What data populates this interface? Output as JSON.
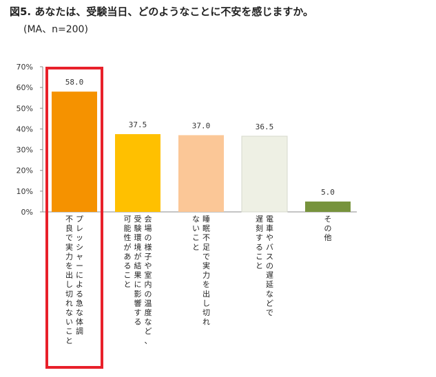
{
  "title": "図5. あなたは、受験当日、どのようなことに不安を感じますか。",
  "subtitle": "(MA、n=200)",
  "chart_data": {
    "type": "bar",
    "title": "図5. あなたは、受験当日、どのようなことに不安を感じますか。",
    "subtitle": "(MA、n=200)",
    "categories": [
      "プレッシャーによる急な体調不良で実力を出し切れないこと",
      "会場の様子や室内の温度など、受験環境が結果に影響する可能性があること",
      "睡眠不足で実力を出し切れないこと",
      "電車やバスの遅延などで遅刻すること",
      "その他"
    ],
    "values": [
      58.0,
      37.5,
      37.0,
      36.5,
      5.0
    ],
    "value_labels": [
      "58.0",
      "37.5",
      "37.0",
      "36.5",
      "5.0"
    ],
    "colors": [
      "#F59200",
      "#FFC000",
      "#FBC797",
      "#EEF0E4",
      "#77933C"
    ],
    "y_ticks": [
      "0%",
      "10%",
      "20%",
      "30%",
      "40%",
      "50%",
      "60%",
      "70%"
    ],
    "ylim": [
      0,
      70
    ],
    "grid": false,
    "highlight_index": 0,
    "highlight_color": "#E8202A",
    "label_lines": [
      [
        "プレッシャーによる急な体調",
        "不良で実力を出し切れないこと"
      ],
      [
        "会場の様子や室内の温度など、",
        "受験環境が結果に影響する",
        "可能性があること"
      ],
      [
        "睡眠不足で実力を出し切れ",
        "ないこと"
      ],
      [
        "電車やバスの遅延などで",
        "遅刻すること"
      ],
      [
        "その他"
      ]
    ]
  }
}
